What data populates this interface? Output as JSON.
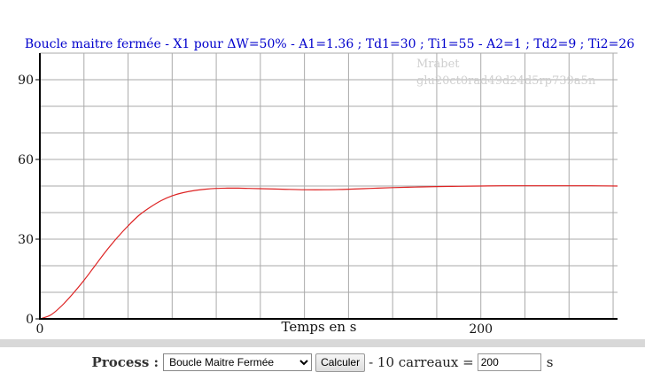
{
  "chart_data": {
    "type": "line",
    "title": "Boucle maitre fermée - X1 pour ΔW=50% - A1=1.36 ; Td1=30 ; Ti1=55 - A2=1 ; Td2=9 ; Ti2=26",
    "watermark_lines": [
      "Mrabet",
      "glu20ct0rad49d24d5rp739a5n"
    ],
    "xlabel": "Temps en s",
    "ylabel": "",
    "xlim": [
      0,
      262
    ],
    "ylim": [
      0,
      100
    ],
    "x_ticks": [
      0,
      200
    ],
    "y_ticks": [
      0,
      30,
      60,
      90
    ],
    "x_grid_step": 20,
    "y_grid_step": 10,
    "grid": true,
    "colors": {
      "title": "#0000cc",
      "series": "#dd2222",
      "grid": "#aaaaaa",
      "axis": "#000000"
    },
    "series": [
      {
        "x": [
          0,
          5,
          10,
          15,
          20,
          25,
          30,
          35,
          40,
          45,
          50,
          55,
          60,
          65,
          70,
          75,
          80,
          85,
          90,
          95,
          100,
          110,
          120,
          130,
          140,
          150,
          160,
          170,
          180,
          190,
          200,
          210,
          220,
          230,
          240,
          250,
          262
        ],
        "values": [
          0,
          1.5,
          5,
          9.5,
          14.5,
          20,
          25.5,
          30.5,
          35,
          39,
          42,
          44.5,
          46.3,
          47.5,
          48.3,
          48.8,
          49.1,
          49.2,
          49.2,
          49.1,
          49,
          48.8,
          48.6,
          48.6,
          48.8,
          49.1,
          49.4,
          49.6,
          49.8,
          49.9,
          50,
          50.1,
          50.1,
          50.1,
          50.1,
          50.1,
          50
        ]
      }
    ]
  },
  "controls": {
    "process_label": "Process :",
    "process_selected": "Boucle Maitre Fermée",
    "calculate_label": "Calculer",
    "squares_text": "- 10 carreaux =",
    "squares_value": "200",
    "unit": "s"
  }
}
